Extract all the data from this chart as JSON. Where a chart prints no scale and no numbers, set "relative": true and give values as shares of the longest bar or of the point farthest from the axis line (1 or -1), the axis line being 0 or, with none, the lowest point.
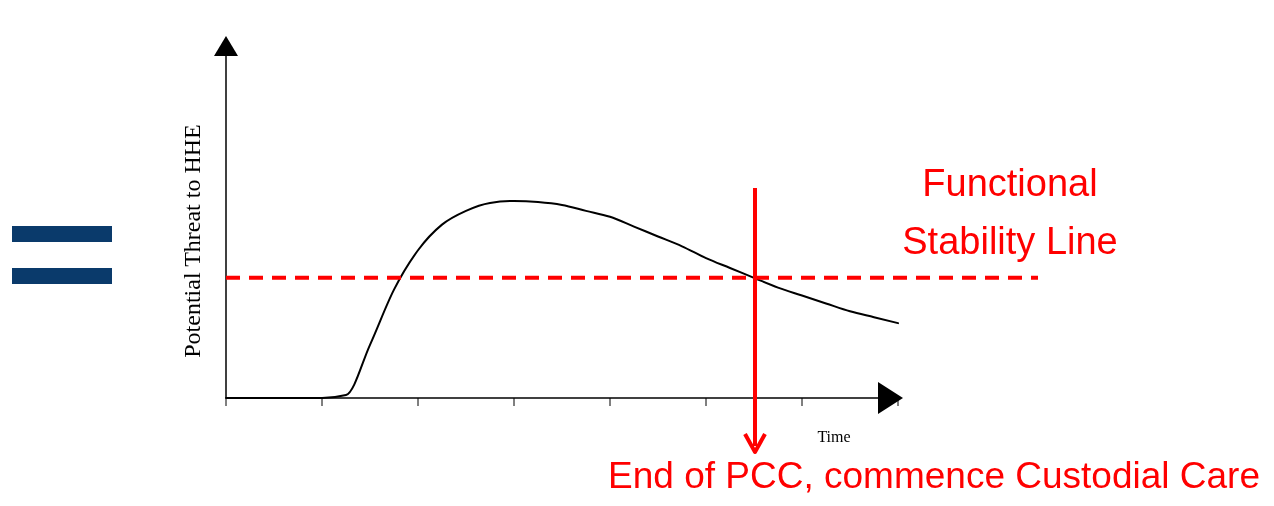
{
  "chart_data": {
    "type": "line",
    "relative": true,
    "xlabel": "Time",
    "ylabel": "Potential Threat to HHE",
    "categories": [
      null,
      null,
      null,
      null,
      null,
      null,
      null,
      null,
      null,
      null,
      null,
      null,
      null,
      null,
      null,
      null,
      null,
      null,
      null,
      null,
      null,
      null,
      null,
      null,
      null,
      null,
      null,
      null,
      null
    ],
    "series": [
      {
        "color": "#000000",
        "values": [
          0,
          0,
          0,
          0,
          0,
          0.015,
          0.27,
          0.55,
          0.75,
          0.88,
          0.95,
          0.99,
          1,
          0.995,
          0.98,
          0.95,
          0.92,
          0.87,
          0.82,
          0.77,
          0.71,
          0.66,
          0.61,
          0.56,
          0.52,
          0.48,
          0.44,
          0.41,
          0.38
        ]
      }
    ],
    "ref_lines": [
      {
        "axis": "y",
        "value": 0.61,
        "label": "Functional Stability Line",
        "color": "#ff0000",
        "line_style": "dashed"
      }
    ],
    "annotations": [
      "End of PCC, commence Custodial Care"
    ],
    "grid": false,
    "line_style": "solid"
  }
}
